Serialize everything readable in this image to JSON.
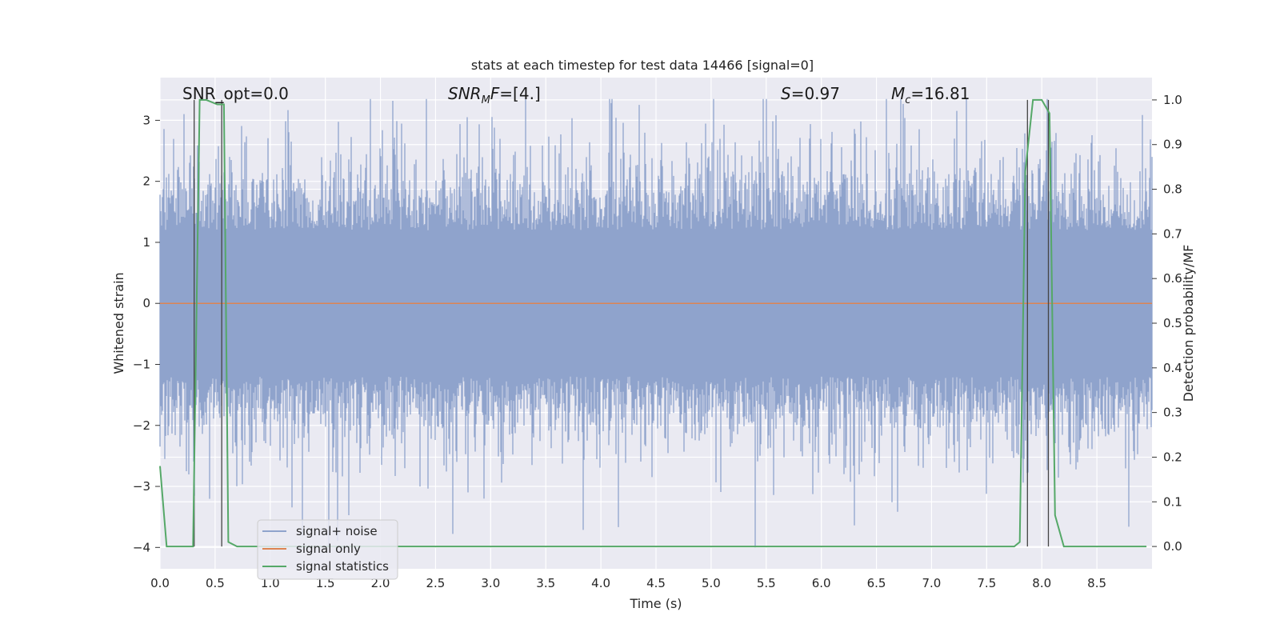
{
  "chart_data": {
    "type": "line",
    "title": "stats at each timestep for test data 14466 [signal=0]",
    "xlabel": "Time (s)",
    "ylabel_left": "Whitened strain",
    "ylabel_right": "Detection probability/MF",
    "xlim": [
      0.0,
      9.0
    ],
    "ylim_left": [
      -4.35,
      3.7
    ],
    "ylim_right": [
      -0.05,
      1.05
    ],
    "x_ticks": [
      "0.0",
      "0.5",
      "1.0",
      "1.5",
      "2.0",
      "2.5",
      "3.0",
      "3.5",
      "4.0",
      "4.5",
      "5.0",
      "5.5",
      "6.0",
      "6.5",
      "7.0",
      "7.5",
      "8.0",
      "8.5"
    ],
    "y_left_ticks": [
      "3",
      "2",
      "1",
      "0",
      "−1",
      "−2",
      "−3",
      "−4"
    ],
    "y_right_ticks": [
      "1.0",
      "0.9",
      "0.8",
      "0.7",
      "0.6",
      "0.5",
      "0.4",
      "0.3",
      "0.2",
      "0.1",
      "0.0"
    ],
    "grid": true,
    "legend_position": "lower-left",
    "annotations": {
      "snr_opt": "SNR_opt=0.0",
      "snr_mf": "=[4.]",
      "s_stat": "=0.97",
      "mc": "=16.81"
    },
    "series": [
      {
        "name": "signal+ noise",
        "color": "#8fa3cc",
        "axis": "left",
        "noise_band_approx": {
          "x_range": [
            0.0,
            9.0
          ],
          "y_range": [
            -4.0,
            3.35
          ]
        }
      },
      {
        "name": "signal only",
        "color": "#dd8452",
        "axis": "left",
        "x": [
          0.0,
          9.0
        ],
        "y": [
          0.0,
          0.0
        ]
      },
      {
        "name": "signal statistics",
        "color": "#55a868",
        "axis": "right",
        "x": [
          0.0,
          0.06,
          0.12,
          0.25,
          0.3,
          0.36,
          0.42,
          0.52,
          0.58,
          0.62,
          0.7,
          7.75,
          7.8,
          7.85,
          7.92,
          8.0,
          8.07,
          8.12,
          8.2,
          8.95
        ],
        "y": [
          0.18,
          0.0,
          0.0,
          0.0,
          0.0,
          1.0,
          1.0,
          0.99,
          0.99,
          0.01,
          0.0,
          0.0,
          0.01,
          0.84,
          1.0,
          1.0,
          0.97,
          0.07,
          0.0,
          0.0
        ]
      }
    ],
    "vertical_markers_x": [
      0.31,
      0.56,
      7.87,
      8.06
    ]
  }
}
